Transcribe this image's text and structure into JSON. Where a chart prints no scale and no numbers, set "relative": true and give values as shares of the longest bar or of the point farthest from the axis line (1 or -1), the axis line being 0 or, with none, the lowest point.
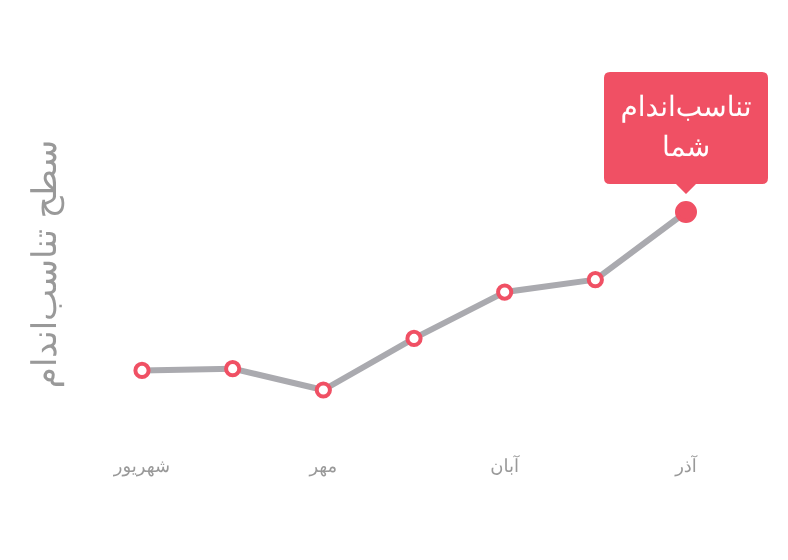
{
  "chart_data": {
    "type": "line",
    "relative": true,
    "ylabel": "سطح تناسب‌اندام",
    "categories": [
      "شهریور",
      null,
      "مهر",
      null,
      "آبان",
      null,
      "آذر"
    ],
    "series": [
      {
        "color": "#aaaaaf",
        "values": [
          0.11,
          0.12,
          0,
          0.29,
          0.55,
          0.62,
          1
        ]
      }
    ],
    "marker": "circle",
    "annotations": [
      {
        "text": "تناسب‌اندام شما",
        "x": "آذر",
        "y": 1
      }
    ]
  }
}
